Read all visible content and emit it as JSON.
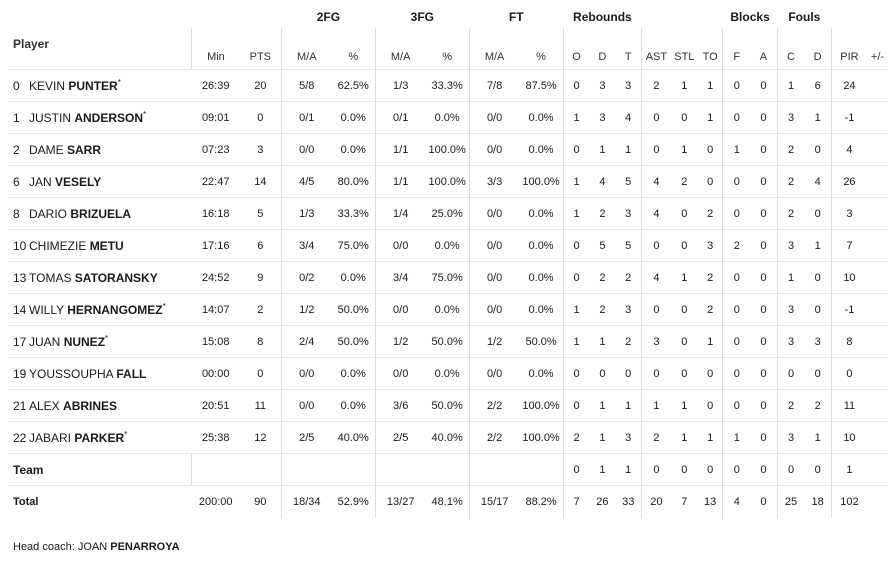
{
  "headers": {
    "player": "Player",
    "min": "Min",
    "pts": "PTS",
    "g2": "2FG",
    "g3": "3FG",
    "ft": "FT",
    "rebounds": "Rebounds",
    "blocks": "Blocks",
    "fouls": "Fouls",
    "ma": "M/A",
    "pct": "%",
    "o": "O",
    "d": "D",
    "t": "T",
    "ast": "AST",
    "stl": "STL",
    "to": "TO",
    "f": "F",
    "a": "A",
    "c": "C",
    "fd": "D",
    "pir": "PIR",
    "pm": "+/-"
  },
  "rows": [
    {
      "num": "0",
      "first": "KEVIN",
      "last": "PUNTER",
      "star": "*",
      "min": "26:39",
      "pts": "20",
      "ma2": "5/8",
      "p2": "62.5%",
      "ma3": "1/3",
      "p3": "33.3%",
      "maf": "7/8",
      "pf": "87.5%",
      "o": "0",
      "d": "3",
      "t": "3",
      "ast": "2",
      "stl": "1",
      "to": "1",
      "bf": "0",
      "ba": "0",
      "fc": "1",
      "fd": "6",
      "pir": "24",
      "pm": ""
    },
    {
      "num": "1",
      "first": "JUSTIN",
      "last": "ANDERSON",
      "star": "*",
      "min": "09:01",
      "pts": "0",
      "ma2": "0/1",
      "p2": "0.0%",
      "ma3": "0/1",
      "p3": "0.0%",
      "maf": "0/0",
      "pf": "0.0%",
      "o": "1",
      "d": "3",
      "t": "4",
      "ast": "0",
      "stl": "0",
      "to": "1",
      "bf": "0",
      "ba": "0",
      "fc": "3",
      "fd": "1",
      "pir": "-1",
      "pm": ""
    },
    {
      "num": "2",
      "first": "DAME",
      "last": "SARR",
      "star": "",
      "min": "07:23",
      "pts": "3",
      "ma2": "0/0",
      "p2": "0.0%",
      "ma3": "1/1",
      "p3": "100.0%",
      "maf": "0/0",
      "pf": "0.0%",
      "o": "0",
      "d": "1",
      "t": "1",
      "ast": "0",
      "stl": "1",
      "to": "0",
      "bf": "1",
      "ba": "0",
      "fc": "2",
      "fd": "0",
      "pir": "4",
      "pm": ""
    },
    {
      "num": "6",
      "first": "JAN",
      "last": "VESELY",
      "star": "",
      "min": "22:47",
      "pts": "14",
      "ma2": "4/5",
      "p2": "80.0%",
      "ma3": "1/1",
      "p3": "100.0%",
      "maf": "3/3",
      "pf": "100.0%",
      "o": "1",
      "d": "4",
      "t": "5",
      "ast": "4",
      "stl": "2",
      "to": "0",
      "bf": "0",
      "ba": "0",
      "fc": "2",
      "fd": "4",
      "pir": "26",
      "pm": ""
    },
    {
      "num": "8",
      "first": "DARIO",
      "last": "BRIZUELA",
      "star": "",
      "min": "16:18",
      "pts": "5",
      "ma2": "1/3",
      "p2": "33.3%",
      "ma3": "1/4",
      "p3": "25.0%",
      "maf": "0/0",
      "pf": "0.0%",
      "o": "1",
      "d": "2",
      "t": "3",
      "ast": "4",
      "stl": "0",
      "to": "2",
      "bf": "0",
      "ba": "0",
      "fc": "2",
      "fd": "0",
      "pir": "3",
      "pm": ""
    },
    {
      "num": "10",
      "first": "CHIMEZIE",
      "last": "METU",
      "star": "",
      "min": "17:16",
      "pts": "6",
      "ma2": "3/4",
      "p2": "75.0%",
      "ma3": "0/0",
      "p3": "0.0%",
      "maf": "0/0",
      "pf": "0.0%",
      "o": "0",
      "d": "5",
      "t": "5",
      "ast": "0",
      "stl": "0",
      "to": "3",
      "bf": "2",
      "ba": "0",
      "fc": "3",
      "fd": "1",
      "pir": "7",
      "pm": ""
    },
    {
      "num": "13",
      "first": "TOMAS",
      "last": "SATORANSKY",
      "star": "",
      "min": "24:52",
      "pts": "9",
      "ma2": "0/2",
      "p2": "0.0%",
      "ma3": "3/4",
      "p3": "75.0%",
      "maf": "0/0",
      "pf": "0.0%",
      "o": "0",
      "d": "2",
      "t": "2",
      "ast": "4",
      "stl": "1",
      "to": "2",
      "bf": "0",
      "ba": "0",
      "fc": "1",
      "fd": "0",
      "pir": "10",
      "pm": ""
    },
    {
      "num": "14",
      "first": "WILLY",
      "last": "HERNANGOMEZ",
      "star": "*",
      "min": "14:07",
      "pts": "2",
      "ma2": "1/2",
      "p2": "50.0%",
      "ma3": "0/0",
      "p3": "0.0%",
      "maf": "0/0",
      "pf": "0.0%",
      "o": "1",
      "d": "2",
      "t": "3",
      "ast": "0",
      "stl": "0",
      "to": "2",
      "bf": "0",
      "ba": "0",
      "fc": "3",
      "fd": "0",
      "pir": "-1",
      "pm": ""
    },
    {
      "num": "17",
      "first": "JUAN",
      "last": "NUNEZ",
      "star": "*",
      "min": "15:08",
      "pts": "8",
      "ma2": "2/4",
      "p2": "50.0%",
      "ma3": "1/2",
      "p3": "50.0%",
      "maf": "1/2",
      "pf": "50.0%",
      "o": "1",
      "d": "1",
      "t": "2",
      "ast": "3",
      "stl": "0",
      "to": "1",
      "bf": "0",
      "ba": "0",
      "fc": "3",
      "fd": "3",
      "pir": "8",
      "pm": ""
    },
    {
      "num": "19",
      "first": "YOUSSOUPHA",
      "last": "FALL",
      "star": "",
      "min": "00:00",
      "pts": "0",
      "ma2": "0/0",
      "p2": "0.0%",
      "ma3": "0/0",
      "p3": "0.0%",
      "maf": "0/0",
      "pf": "0.0%",
      "o": "0",
      "d": "0",
      "t": "0",
      "ast": "0",
      "stl": "0",
      "to": "0",
      "bf": "0",
      "ba": "0",
      "fc": "0",
      "fd": "0",
      "pir": "0",
      "pm": ""
    },
    {
      "num": "21",
      "first": "ALEX",
      "last": "ABRINES",
      "star": "",
      "min": "20:51",
      "pts": "11",
      "ma2": "0/0",
      "p2": "0.0%",
      "ma3": "3/6",
      "p3": "50.0%",
      "maf": "2/2",
      "pf": "100.0%",
      "o": "0",
      "d": "1",
      "t": "1",
      "ast": "1",
      "stl": "1",
      "to": "0",
      "bf": "0",
      "ba": "0",
      "fc": "2",
      "fd": "2",
      "pir": "11",
      "pm": ""
    },
    {
      "num": "22",
      "first": "JABARI",
      "last": "PARKER",
      "star": "*",
      "min": "25:38",
      "pts": "12",
      "ma2": "2/5",
      "p2": "40.0%",
      "ma3": "2/5",
      "p3": "40.0%",
      "maf": "2/2",
      "pf": "100.0%",
      "o": "2",
      "d": "1",
      "t": "3",
      "ast": "2",
      "stl": "1",
      "to": "1",
      "bf": "1",
      "ba": "0",
      "fc": "3",
      "fd": "1",
      "pir": "10",
      "pm": ""
    }
  ],
  "team": {
    "label": "Team",
    "o": "0",
    "d": "1",
    "t": "1",
    "ast": "0",
    "stl": "0",
    "to": "0",
    "bf": "0",
    "ba": "0",
    "fc": "0",
    "fd": "0",
    "pir": "1"
  },
  "total": {
    "label": "Total",
    "min": "200:00",
    "pts": "90",
    "ma2": "18/34",
    "p2": "52.9%",
    "ma3": "13/27",
    "p3": "48.1%",
    "maf": "15/17",
    "pf": "88.2%",
    "o": "7",
    "d": "26",
    "t": "33",
    "ast": "20",
    "stl": "7",
    "to": "13",
    "bf": "4",
    "ba": "0",
    "fc": "25",
    "fd": "18",
    "pir": "102",
    "pm": ""
  },
  "coach": {
    "label": "Head coach:",
    "first": "JOAN",
    "last": "PENARROYA"
  }
}
